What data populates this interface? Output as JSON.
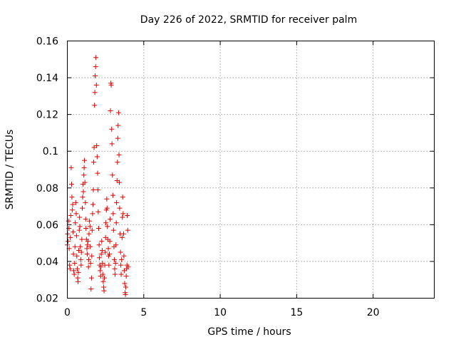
{
  "chart_data": {
    "type": "scatter",
    "title": "Day 226 of 2022, SRMTID for receiver palm",
    "xlabel": "GPS time / hours",
    "ylabel": "SRMTID / TECUs",
    "xlim": [
      0,
      24
    ],
    "ylim": [
      0.02,
      0.16
    ],
    "x_ticks": [
      0,
      5,
      10,
      15,
      20
    ],
    "x_tick_labels": [
      "0",
      "5",
      "10",
      "15",
      "20"
    ],
    "y_ticks": [
      0.02,
      0.04,
      0.06,
      0.08,
      0.1,
      0.12,
      0.14,
      0.16
    ],
    "y_tick_labels": [
      "0.02",
      "0.04",
      "0.06",
      "0.08",
      "0.1",
      "0.12",
      "0.14",
      "0.16"
    ],
    "grid": true,
    "marker": "plus",
    "marker_color": "#e00000",
    "series": [
      {
        "name": "SRMTID",
        "points": [
          [
            0.0,
            0.049
          ],
          [
            0.02,
            0.055
          ],
          [
            0.05,
            0.051
          ],
          [
            0.08,
            0.062
          ],
          [
            0.1,
            0.058
          ],
          [
            0.12,
            0.047
          ],
          [
            0.15,
            0.038
          ],
          [
            0.18,
            0.036
          ],
          [
            0.2,
            0.053
          ],
          [
            0.22,
            0.065
          ],
          [
            0.25,
            0.091
          ],
          [
            0.28,
            0.082
          ],
          [
            0.3,
            0.075
          ],
          [
            0.32,
            0.068
          ],
          [
            0.35,
            0.071
          ],
          [
            0.38,
            0.056
          ],
          [
            0.4,
            0.044
          ],
          [
            0.42,
            0.035
          ],
          [
            0.45,
            0.033
          ],
          [
            0.48,
            0.039
          ],
          [
            0.5,
            0.048
          ],
          [
            0.52,
            0.061
          ],
          [
            0.55,
            0.072
          ],
          [
            0.58,
            0.066
          ],
          [
            0.6,
            0.054
          ],
          [
            0.62,
            0.043
          ],
          [
            0.65,
            0.036
          ],
          [
            0.68,
            0.031
          ],
          [
            0.7,
            0.029
          ],
          [
            0.72,
            0.034
          ],
          [
            0.75,
            0.046
          ],
          [
            0.78,
            0.057
          ],
          [
            0.8,
            0.064
          ],
          [
            0.82,
            0.059
          ],
          [
            0.85,
            0.048
          ],
          [
            0.88,
            0.041
          ],
          [
            0.9,
            0.038
          ],
          [
            0.92,
            0.045
          ],
          [
            0.95,
            0.052
          ],
          [
            0.98,
            0.069
          ],
          [
            1.0,
            0.075
          ],
          [
            1.02,
            0.082
          ],
          [
            1.05,
            0.078
          ],
          [
            1.08,
            0.087
          ],
          [
            1.1,
            0.091
          ],
          [
            1.12,
            0.095
          ],
          [
            1.15,
            0.083
          ],
          [
            1.18,
            0.072
          ],
          [
            1.2,
            0.063
          ],
          [
            1.22,
            0.058
          ],
          [
            1.25,
            0.052
          ],
          [
            1.28,
            0.047
          ],
          [
            1.3,
            0.044
          ],
          [
            1.32,
            0.049
          ],
          [
            1.35,
            0.051
          ],
          [
            1.38,
            0.037
          ],
          [
            1.4,
            0.041
          ],
          [
            1.42,
            0.055
          ],
          [
            1.45,
            0.062
          ],
          [
            1.48,
            0.059
          ],
          [
            1.5,
            0.048
          ],
          [
            1.52,
            0.039
          ],
          [
            1.55,
            0.025
          ],
          [
            1.58,
            0.031
          ],
          [
            1.6,
            0.043
          ],
          [
            1.62,
            0.057
          ],
          [
            1.65,
            0.066
          ],
          [
            1.68,
            0.071
          ],
          [
            1.7,
            0.079
          ],
          [
            1.72,
            0.094
          ],
          [
            1.75,
            0.102
          ],
          [
            1.78,
            0.125
          ],
          [
            1.8,
            0.132
          ],
          [
            1.82,
            0.141
          ],
          [
            1.85,
            0.146
          ],
          [
            1.87,
            0.151
          ],
          [
            1.9,
            0.136
          ],
          [
            1.92,
            0.103
          ],
          [
            1.95,
            0.097
          ],
          [
            1.98,
            0.088
          ],
          [
            2.0,
            0.079
          ],
          [
            2.02,
            0.067
          ],
          [
            2.05,
            0.058
          ],
          [
            2.08,
            0.049
          ],
          [
            2.1,
            0.042
          ],
          [
            2.12,
            0.038
          ],
          [
            2.15,
            0.035
          ],
          [
            2.18,
            0.032
          ],
          [
            2.2,
            0.037
          ],
          [
            2.22,
            0.044
          ],
          [
            2.25,
            0.051
          ],
          [
            2.28,
            0.046
          ],
          [
            2.3,
            0.039
          ],
          [
            2.32,
            0.033
          ],
          [
            2.35,
            0.029
          ],
          [
            2.38,
            0.026
          ],
          [
            2.4,
            0.024
          ],
          [
            2.42,
            0.031
          ],
          [
            2.45,
            0.038
          ],
          [
            2.48,
            0.045
          ],
          [
            2.5,
            0.053
          ],
          [
            2.52,
            0.061
          ],
          [
            2.55,
            0.068
          ],
          [
            2.58,
            0.074
          ],
          [
            2.6,
            0.069
          ],
          [
            2.62,
            0.059
          ],
          [
            2.65,
            0.052
          ],
          [
            2.68,
            0.047
          ],
          [
            2.7,
            0.043
          ],
          [
            2.72,
            0.038
          ],
          [
            2.75,
            0.044
          ],
          [
            2.78,
            0.051
          ],
          [
            2.8,
            0.063
          ],
          [
            2.82,
            0.122
          ],
          [
            2.85,
            0.137
          ],
          [
            2.87,
            0.136
          ],
          [
            2.9,
            0.112
          ],
          [
            2.92,
            0.104
          ],
          [
            2.95,
            0.087
          ],
          [
            2.98,
            0.076
          ],
          [
            3.0,
            0.066
          ],
          [
            3.02,
            0.057
          ],
          [
            3.05,
            0.048
          ],
          [
            3.08,
            0.041
          ],
          [
            3.1,
            0.036
          ],
          [
            3.12,
            0.033
          ],
          [
            3.15,
            0.039
          ],
          [
            3.18,
            0.049
          ],
          [
            3.2,
            0.061
          ],
          [
            3.22,
            0.072
          ],
          [
            3.25,
            0.084
          ],
          [
            3.28,
            0.094
          ],
          [
            3.3,
            0.107
          ],
          [
            3.32,
            0.114
          ],
          [
            3.35,
            0.121
          ],
          [
            3.38,
            0.098
          ],
          [
            3.4,
            0.083
          ],
          [
            3.42,
            0.069
          ],
          [
            3.45,
            0.055
          ],
          [
            3.48,
            0.045
          ],
          [
            3.5,
            0.038
          ],
          [
            3.52,
            0.033
          ],
          [
            3.55,
            0.041
          ],
          [
            3.58,
            0.053
          ],
          [
            3.6,
            0.064
          ],
          [
            3.62,
            0.075
          ],
          [
            3.65,
            0.066
          ],
          [
            3.68,
            0.055
          ],
          [
            3.7,
            0.043
          ],
          [
            3.72,
            0.035
          ],
          [
            3.75,
            0.028
          ],
          [
            3.78,
            0.023
          ],
          [
            3.8,
            0.022
          ],
          [
            3.82,
            0.026
          ],
          [
            3.85,
            0.032
          ],
          [
            3.88,
            0.036
          ],
          [
            3.9,
            0.038
          ],
          [
            3.92,
            0.065
          ],
          [
            3.95,
            0.057
          ],
          [
            3.98,
            0.037
          ]
        ]
      }
    ]
  }
}
